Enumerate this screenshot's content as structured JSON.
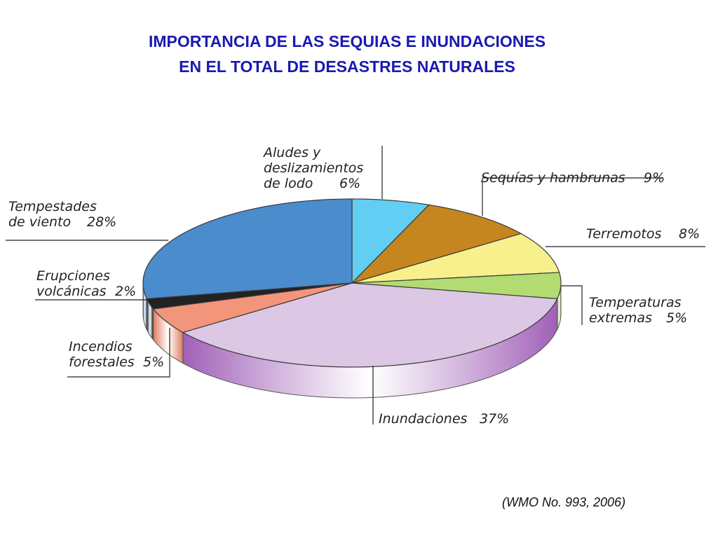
{
  "chart_data": {
    "type": "pie",
    "title": [
      "IMPORTANCIA DE LAS SEQUIAS E INUNDACIONES",
      "EN EL TOTAL DE DESASTRES NATURALES"
    ],
    "source": "(WMO No. 993, 2006)",
    "slices": [
      {
        "key": "aludes",
        "label_lines": [
          "Aludes y",
          "deslizamientos",
          "de lodo"
        ],
        "pct_text": "6%",
        "value": 6,
        "color": "#62cef4",
        "side": "#3fa6cc"
      },
      {
        "key": "sequias",
        "label_lines": [
          "Sequías y hambrunas"
        ],
        "pct_text": "9%",
        "value": 9,
        "color": "#c5861f",
        "side": "#8f5f10"
      },
      {
        "key": "terremotos",
        "label_lines": [
          "Terremotos"
        ],
        "pct_text": "8%",
        "value": 8,
        "color": "#f8f08c",
        "side": "#c9c060"
      },
      {
        "key": "temperaturas",
        "label_lines": [
          "Temperaturas",
          "extremas"
        ],
        "pct_text": "5%",
        "value": 5,
        "color": "#b2dc72",
        "side": "#86b24a"
      },
      {
        "key": "inundaciones",
        "label_lines": [
          "Inundaciones"
        ],
        "pct_text": "37%",
        "value": 37,
        "color": "#dcc8e4",
        "side": "#a060b8"
      },
      {
        "key": "incendios",
        "label_lines": [
          "Incendios",
          "forestales"
        ],
        "pct_text": "5%",
        "value": 5,
        "color": "#f2957a",
        "side": "#e07a60"
      },
      {
        "key": "erupciones",
        "label_lines": [
          "Erupciones",
          "volcánicas"
        ],
        "pct_text": "2%",
        "value": 2,
        "color": "#222222",
        "side": "#111111"
      },
      {
        "key": "tempestades",
        "label_lines": [
          "Tempestades",
          "de viento"
        ],
        "pct_text": "28%",
        "value": 28,
        "color": "#4b8ccc",
        "side": "#2d64a4"
      }
    ]
  }
}
